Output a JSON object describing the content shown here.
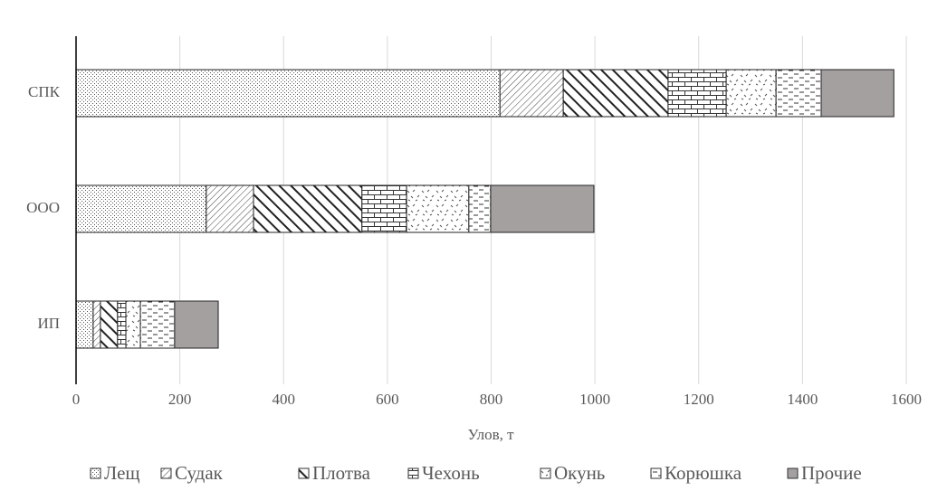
{
  "chart_data": {
    "type": "bar",
    "orientation": "horizontal",
    "stacked": true,
    "x_label": "Улов, т",
    "categories": [
      "СПК",
      "ООО",
      "ИП"
    ],
    "series": [
      {
        "name": "Лещ",
        "values": [
          817,
          251,
          33
        ]
      },
      {
        "name": "Судак",
        "values": [
          122,
          91,
          14
        ]
      },
      {
        "name": "Плотва",
        "values": [
          202,
          209,
          33
        ]
      },
      {
        "name": "Чехонь",
        "values": [
          112,
          86,
          16
        ]
      },
      {
        "name": "Окунь",
        "values": [
          96,
          120,
          28
        ]
      },
      {
        "name": "Корюшка",
        "values": [
          87,
          42,
          66
        ]
      },
      {
        "name": "Прочие",
        "values": [
          140,
          199,
          84
        ]
      }
    ],
    "xlim": [
      0,
      1600
    ],
    "xticks": [
      0,
      200,
      400,
      600,
      800,
      1000,
      1200,
      1400,
      1600
    ],
    "grid": true,
    "legend": "bottom"
  }
}
